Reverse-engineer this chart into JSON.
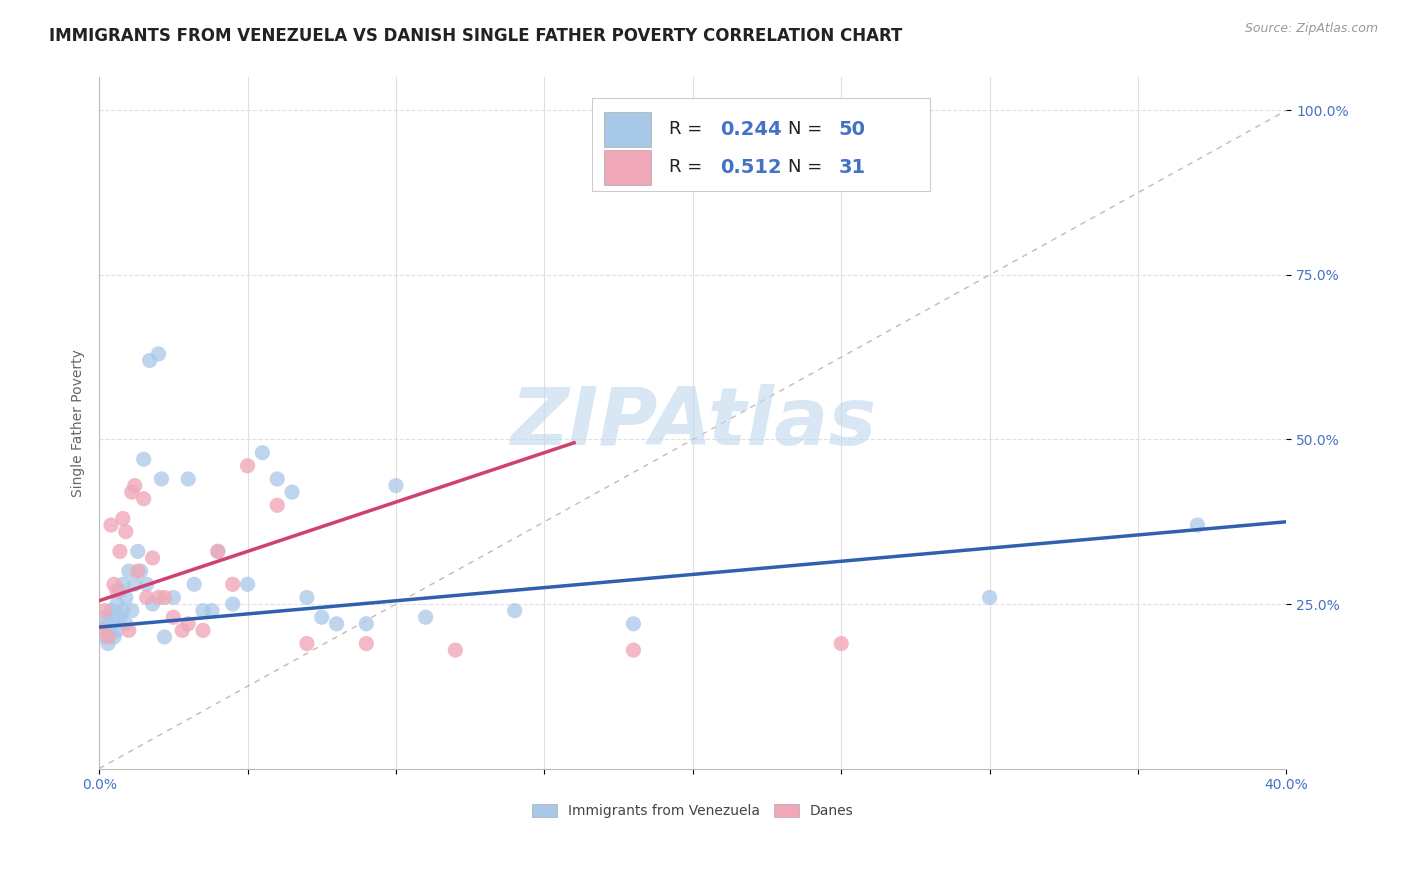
{
  "title": "IMMIGRANTS FROM VENEZUELA VS DANISH SINGLE FATHER POVERTY CORRELATION CHART",
  "source": "Source: ZipAtlas.com",
  "ylabel": "Single Father Poverty",
  "xlim": [
    0.0,
    0.4
  ],
  "ylim": [
    0.0,
    1.05
  ],
  "xticks": [
    0.0,
    0.05,
    0.1,
    0.15,
    0.2,
    0.25,
    0.3,
    0.35,
    0.4
  ],
  "ytick_positions": [
    0.25,
    0.5,
    0.75,
    1.0
  ],
  "ytick_labels": [
    "25.0%",
    "50.0%",
    "75.0%",
    "100.0%"
  ],
  "R_blue": "0.244",
  "N_blue": "50",
  "R_pink": "0.512",
  "N_pink": "31",
  "blue_color": "#a8c8e8",
  "pink_color": "#f0a8b8",
  "blue_line_color": "#3060b0",
  "pink_line_color": "#d04070",
  "ref_line_color": "#c8a0a0",
  "legend_blue_label": "Immigrants from Venezuela",
  "legend_pink_label": "Danes",
  "watermark": "ZIPAtlas",
  "blue_scatter_x": [
    0.001,
    0.002,
    0.002,
    0.003,
    0.003,
    0.004,
    0.004,
    0.005,
    0.005,
    0.006,
    0.006,
    0.007,
    0.007,
    0.008,
    0.008,
    0.009,
    0.009,
    0.01,
    0.011,
    0.012,
    0.013,
    0.014,
    0.015,
    0.016,
    0.017,
    0.018,
    0.02,
    0.021,
    0.022,
    0.025,
    0.03,
    0.032,
    0.035,
    0.038,
    0.04,
    0.045,
    0.05,
    0.055,
    0.06,
    0.065,
    0.07,
    0.075,
    0.08,
    0.09,
    0.1,
    0.11,
    0.14,
    0.18,
    0.3,
    0.37
  ],
  "blue_scatter_y": [
    0.21,
    0.2,
    0.23,
    0.19,
    0.22,
    0.21,
    0.24,
    0.2,
    0.23,
    0.21,
    0.25,
    0.23,
    0.27,
    0.24,
    0.28,
    0.22,
    0.26,
    0.3,
    0.24,
    0.28,
    0.33,
    0.3,
    0.47,
    0.28,
    0.62,
    0.25,
    0.63,
    0.44,
    0.2,
    0.26,
    0.44,
    0.28,
    0.24,
    0.24,
    0.33,
    0.25,
    0.28,
    0.48,
    0.44,
    0.42,
    0.26,
    0.23,
    0.22,
    0.22,
    0.43,
    0.23,
    0.24,
    0.22,
    0.26,
    0.37
  ],
  "pink_scatter_x": [
    0.001,
    0.002,
    0.003,
    0.004,
    0.005,
    0.006,
    0.007,
    0.008,
    0.009,
    0.01,
    0.011,
    0.012,
    0.013,
    0.015,
    0.016,
    0.018,
    0.02,
    0.022,
    0.025,
    0.028,
    0.03,
    0.035,
    0.04,
    0.045,
    0.05,
    0.06,
    0.07,
    0.09,
    0.12,
    0.18,
    0.25
  ],
  "pink_scatter_y": [
    0.21,
    0.24,
    0.2,
    0.37,
    0.28,
    0.27,
    0.33,
    0.38,
    0.36,
    0.21,
    0.42,
    0.43,
    0.3,
    0.41,
    0.26,
    0.32,
    0.26,
    0.26,
    0.23,
    0.21,
    0.22,
    0.21,
    0.33,
    0.28,
    0.46,
    0.4,
    0.19,
    0.19,
    0.18,
    0.18,
    0.19
  ],
  "blue_line_x": [
    0.0,
    0.4
  ],
  "blue_line_y": [
    0.215,
    0.375
  ],
  "pink_line_x": [
    0.0,
    0.16
  ],
  "pink_line_y": [
    0.255,
    0.495
  ],
  "ref_line_x": [
    0.0,
    0.4
  ],
  "ref_line_y": [
    0.0,
    1.0
  ],
  "title_fontsize": 12,
  "label_fontsize": 10,
  "tick_fontsize": 10,
  "source_fontsize": 9,
  "watermark_color": "#c0d8ee",
  "tick_color": "#4472c4",
  "grid_color": "#e0e0e0"
}
